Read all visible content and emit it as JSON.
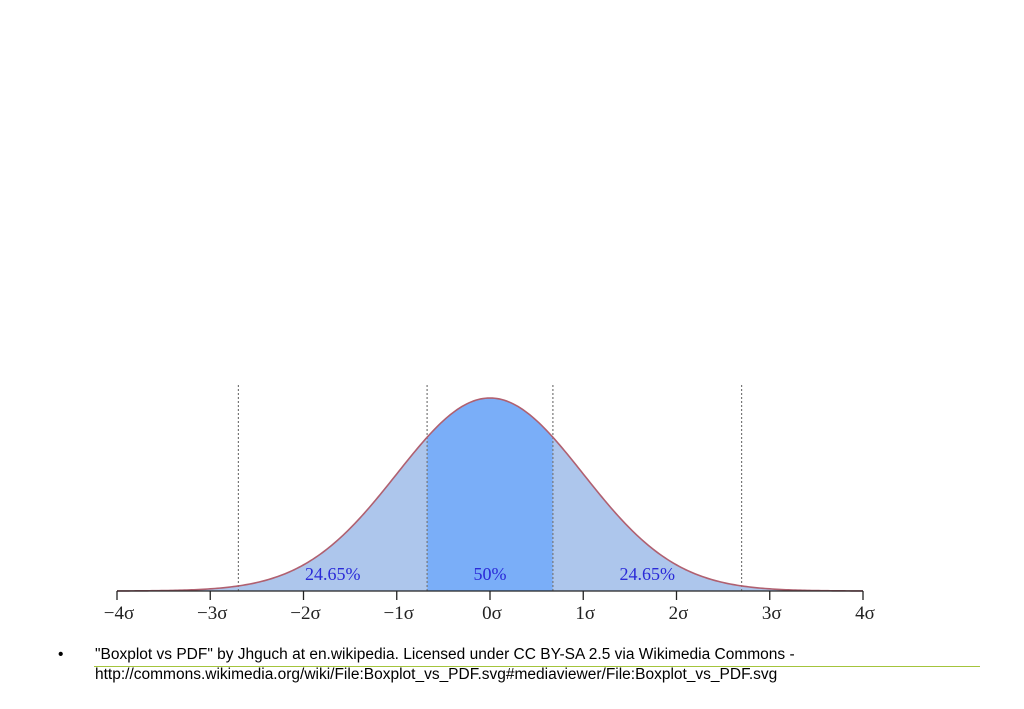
{
  "chart_data": {
    "type": "area",
    "distribution": "normal",
    "x_unit": "σ",
    "xlim": [
      -4,
      4
    ],
    "x_ticks": [
      -4,
      -3,
      -2,
      -1,
      0,
      1,
      2,
      3,
      4
    ],
    "tick_labels": [
      "−4σ",
      "−3σ",
      "−2σ",
      "−1σ",
      "0σ",
      "1σ",
      "2σ",
      "3σ",
      "4σ"
    ],
    "boundaries": [
      -2.698,
      -0.6745,
      0.6745,
      2.698
    ],
    "regions": [
      {
        "from": -2.698,
        "to": -0.6745,
        "label": "24.65%",
        "color": "#adc6ec"
      },
      {
        "from": -0.6745,
        "to": 0.6745,
        "label": "50%",
        "color": "#7aaef8"
      },
      {
        "from": 0.6745,
        "to": 2.698,
        "label": "24.65%",
        "color": "#adc6ec"
      }
    ],
    "tail_color": "#adc6ec",
    "curve_color": "#b06070",
    "label_color": "#2a2ad8",
    "grid": false
  },
  "caption": {
    "bullet": "•",
    "line1": "\"Boxplot vs PDF\" by Jhguch at en.wikipedia. Licensed under CC BY-SA 2.5 via Wikimedia Commons -",
    "line2": "http://commons.wikimedia.org/wiki/File:Boxplot_vs_PDF.svg#mediaviewer/File:Boxplot_vs_PDF.svg"
  }
}
